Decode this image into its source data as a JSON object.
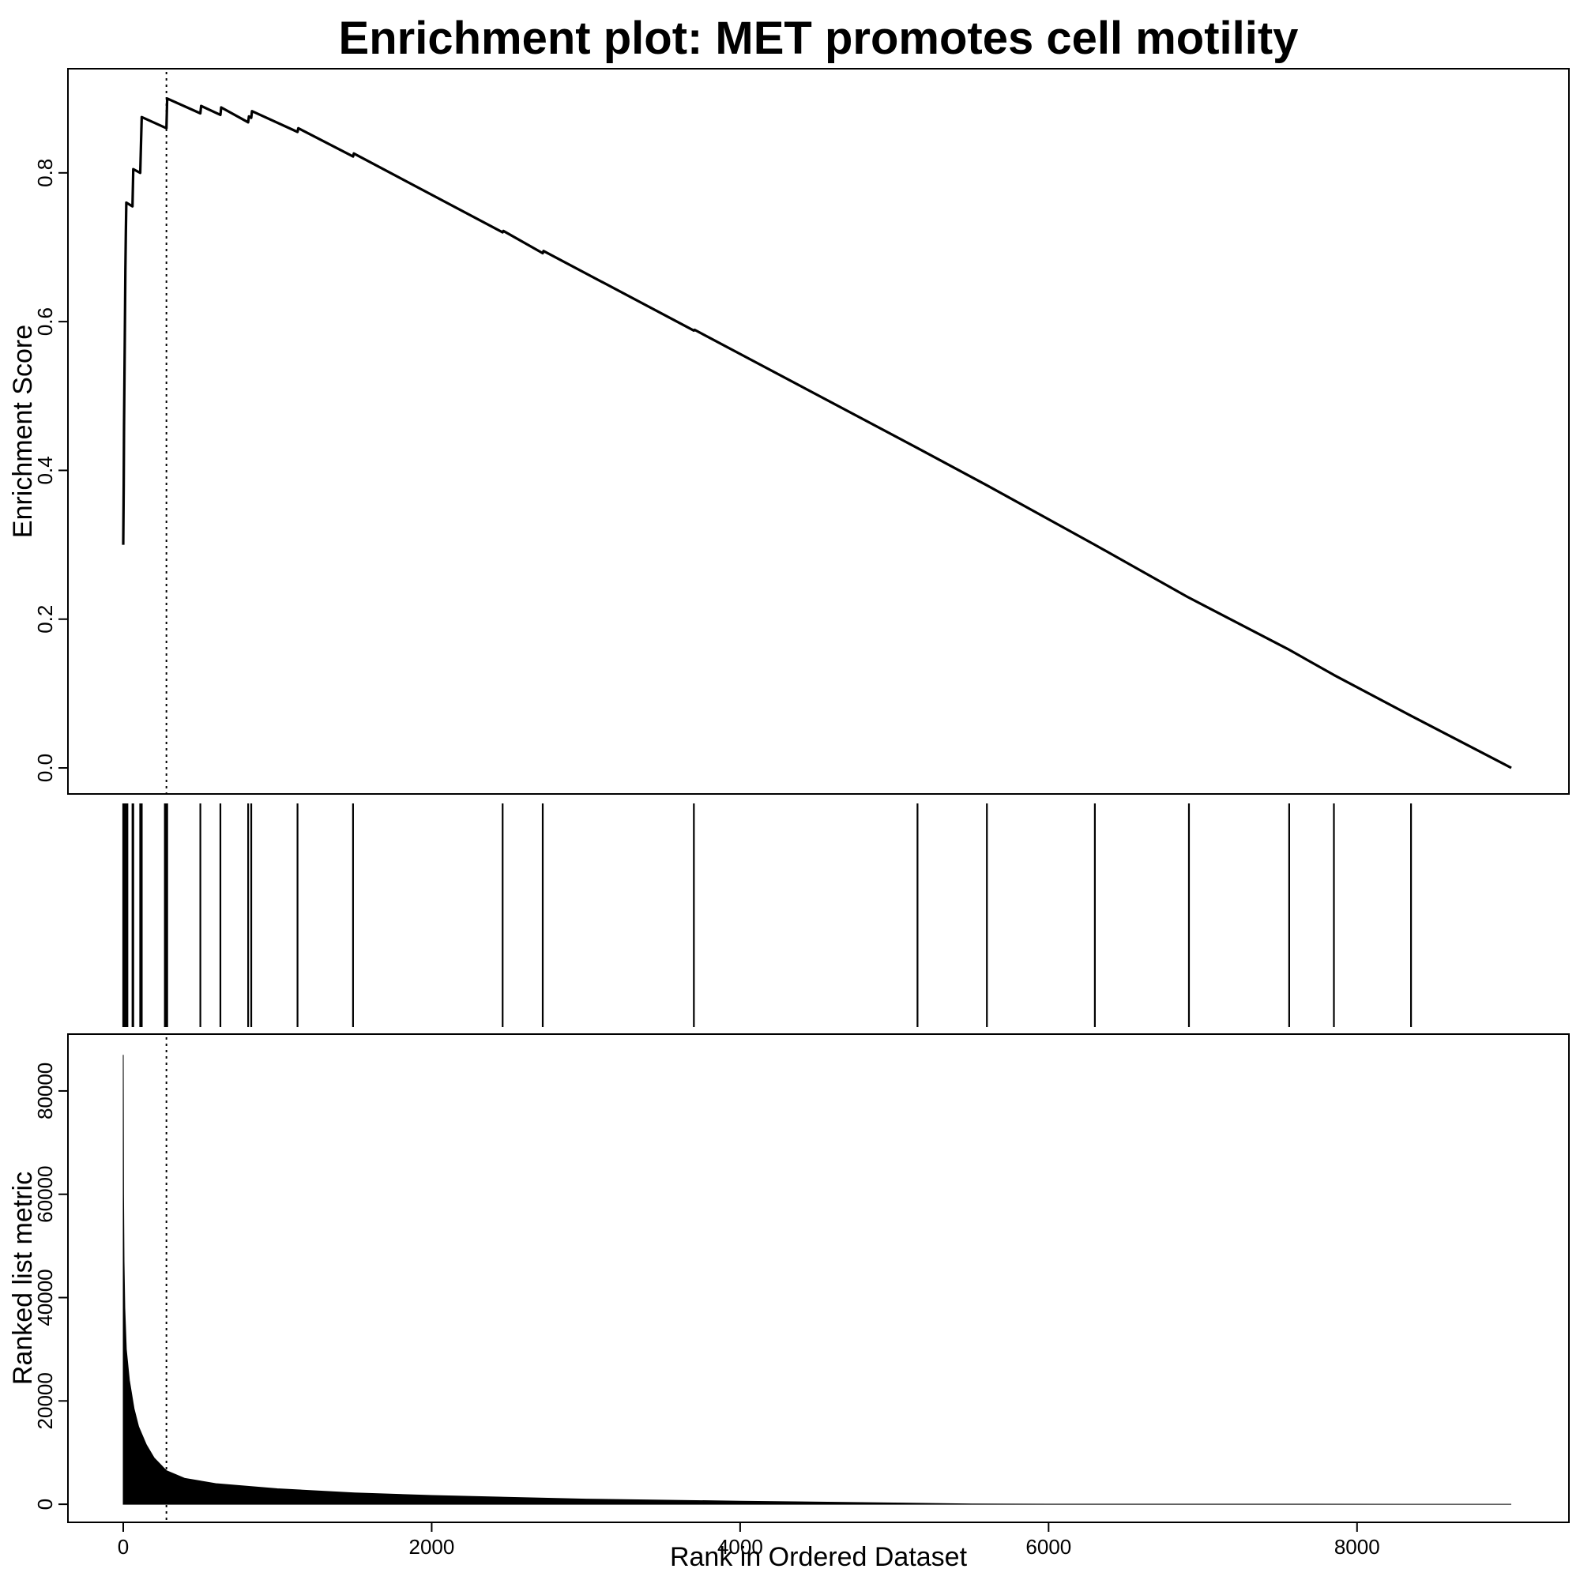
{
  "chart_data": {
    "type": "line",
    "title": "Enrichment plot: MET promotes cell motility",
    "xlabel": "Rank in Ordered Dataset",
    "x_ticks": [
      0,
      2000,
      4000,
      6000,
      8000
    ],
    "xlim": [
      0,
      9000
    ],
    "grid": false,
    "panels": {
      "enrichment": {
        "type": "line",
        "ylabel": "Enrichment Score",
        "y_ticks": [
          0.0,
          0.2,
          0.4,
          0.6,
          0.8
        ],
        "y_tick_labels": [
          "0.0",
          "0.2",
          "0.4",
          "0.6",
          "0.8"
        ],
        "ylim": [
          -0.035,
          0.94
        ],
        "series": [
          {
            "points": [
              [
                0,
                0.3
              ],
              [
                3,
                0.38
              ],
              [
                5,
                0.46
              ],
              [
                10,
                0.58
              ],
              [
                14,
                0.67
              ],
              [
                17,
                0.72
              ],
              [
                20,
                0.76
              ],
              [
                60,
                0.755
              ],
              [
                65,
                0.805
              ],
              [
                110,
                0.8
              ],
              [
                115,
                0.84
              ],
              [
                120,
                0.875
              ],
              [
                280,
                0.86
              ],
              [
                285,
                0.9
              ],
              [
                500,
                0.88
              ],
              [
                505,
                0.89
              ],
              [
                630,
                0.878
              ],
              [
                635,
                0.888
              ],
              [
                810,
                0.868
              ],
              [
                815,
                0.876
              ],
              [
                830,
                0.874
              ],
              [
                835,
                0.883
              ],
              [
                1130,
                0.855
              ],
              [
                1135,
                0.86
              ],
              [
                1490,
                0.822
              ],
              [
                1495,
                0.826
              ],
              [
                2460,
                0.72
              ],
              [
                2465,
                0.722
              ],
              [
                2720,
                0.692
              ],
              [
                2725,
                0.695
              ],
              [
                3700,
                0.588
              ],
              [
                3705,
                0.589
              ],
              [
                5150,
                0.43
              ],
              [
                5600,
                0.38
              ],
              [
                6300,
                0.3
              ],
              [
                6900,
                0.23
              ],
              [
                7550,
                0.16
              ],
              [
                7850,
                0.125
              ],
              [
                8350,
                0.07
              ],
              [
                9000,
                0.0
              ]
            ]
          }
        ],
        "peak_rank": 280
      },
      "hits": {
        "type": "barcode",
        "positions": [
          0,
          8,
          12,
          15,
          18,
          21,
          24,
          27,
          60,
          65,
          110,
          115,
          120,
          270,
          275,
          280,
          285,
          500,
          630,
          810,
          830,
          1130,
          1490,
          2460,
          2720,
          3700,
          5150,
          5600,
          6300,
          6910,
          7560,
          7850,
          8350
        ]
      },
      "ranked_metric": {
        "type": "area",
        "ylabel": "Ranked list metric",
        "y_ticks": [
          0,
          20000,
          40000,
          60000,
          80000
        ],
        "y_tick_labels": [
          "0",
          "20000",
          "40000",
          "60000",
          "80000"
        ],
        "ylim": [
          -3500,
          91000
        ],
        "points": [
          [
            0,
            87000
          ],
          [
            2,
            60000
          ],
          [
            5,
            47000
          ],
          [
            10,
            38000
          ],
          [
            20,
            30000
          ],
          [
            40,
            24000
          ],
          [
            70,
            18500
          ],
          [
            100,
            15000
          ],
          [
            150,
            11500
          ],
          [
            200,
            9000
          ],
          [
            280,
            6500
          ],
          [
            400,
            5000
          ],
          [
            600,
            4000
          ],
          [
            1000,
            3000
          ],
          [
            1500,
            2200
          ],
          [
            2000,
            1700
          ],
          [
            3000,
            1000
          ],
          [
            4000,
            600
          ],
          [
            5000,
            250
          ],
          [
            5500,
            50
          ],
          [
            6000,
            20
          ],
          [
            9000,
            0
          ]
        ],
        "peak_rank": 280
      }
    }
  }
}
